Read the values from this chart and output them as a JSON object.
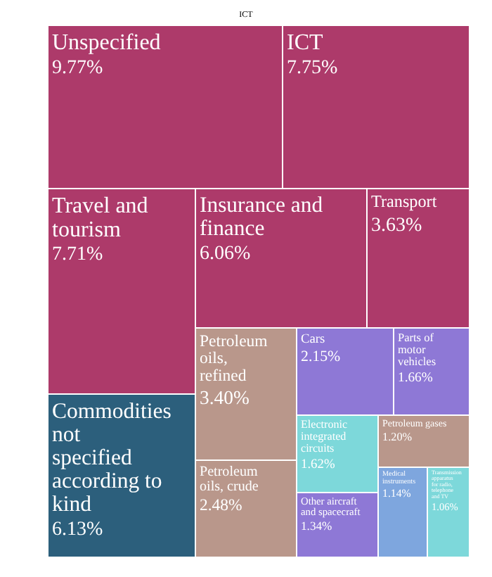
{
  "chart_data": {
    "type": "other",
    "title": "ICT",
    "categories": [
      "Unspecified",
      "ICT",
      "Travel and tourism",
      "Commodities not specified according to kind",
      "Insurance and finance",
      "Transport",
      "Petroleum oils, refined",
      "Petroleum oils, crude",
      "Cars",
      "Parts of motor vehicles",
      "Electronic integrated circuits",
      "Other aircraft and spacecraft",
      "Petroleum gases",
      "Medical instruments",
      "Transmission apparatus for radio, telephone and TV"
    ],
    "values": [
      9.77,
      7.75,
      7.71,
      6.13,
      6.06,
      3.63,
      3.4,
      2.48,
      2.15,
      1.66,
      1.62,
      1.34,
      1.2,
      1.14,
      1.06
    ],
    "value_labels": [
      "9.77%",
      "7.75%",
      "7.71%",
      "6.13%",
      "6.06%",
      "3.63%",
      "3.40%",
      "2.48%",
      "2.15%",
      "1.66%",
      "1.62%",
      "1.34%",
      "1.20%",
      "1.14%",
      "1.06%"
    ],
    "colors": [
      "#ad3a6a",
      "#ad3a6a",
      "#ad3a6a",
      "#2c5f7c",
      "#ad3a6a",
      "#ad3a6a",
      "#b9978b",
      "#b9978b",
      "#8e78d6",
      "#8e78d6",
      "#7dd8da",
      "#8e78d6",
      "#b9978b",
      "#7ea6de",
      "#7dd8da"
    ]
  }
}
